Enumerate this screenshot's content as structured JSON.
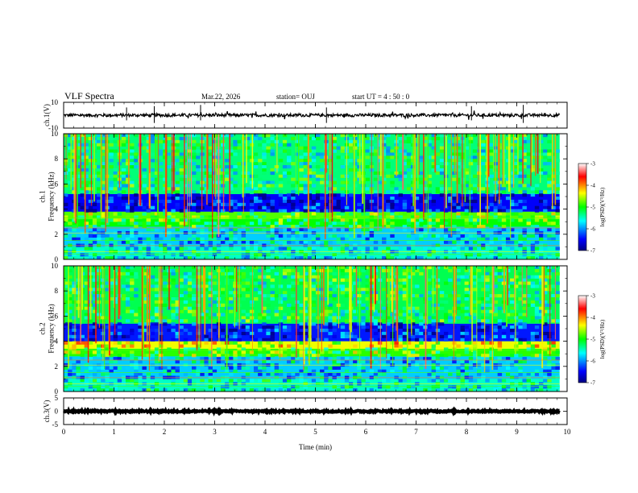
{
  "header": {
    "title": "VLF Spectra",
    "date": "Mar.22, 2026",
    "station": "station= OUJ",
    "start_ut": "start  UT  =   4 : 50 : 0"
  },
  "chart_data": [
    {
      "type": "line",
      "name": "ch1-waveform",
      "ylabel": "ch.1(V)",
      "ylim": [
        -10,
        10
      ],
      "yticks": [
        "10",
        "-10"
      ],
      "xlim": [
        0,
        9.85
      ],
      "approx_level": 0,
      "approx_amplitude": 1.2,
      "series": [
        {
          "color": "#000000"
        }
      ]
    },
    {
      "type": "heatmap",
      "name": "ch1-spectrogram",
      "ylabel": "ch.1\nFrequency (kHz)",
      "ylim": [
        0,
        10
      ],
      "yticks": [
        "0",
        "2",
        "4",
        "6",
        "8",
        "10"
      ],
      "xlim": [
        0,
        9.85
      ],
      "bands_khz": [
        {
          "from": 0,
          "to": 1,
          "log_psd": -5.5
        },
        {
          "from": 1,
          "to": 2.6,
          "log_psd": -5.8
        },
        {
          "from": 2.6,
          "to": 3.2,
          "log_psd": -5.0
        },
        {
          "from": 3.2,
          "to": 3.8,
          "log_psd": -4.8
        },
        {
          "from": 3.8,
          "to": 5.2,
          "log_psd": -6.5
        },
        {
          "from": 5.2,
          "to": 10,
          "log_psd": -5.3
        }
      ],
      "colorbar": {
        "label": "log(PSD)(V²/Hz)",
        "range": [
          -7,
          -3
        ],
        "ticks": [
          "-3",
          "-4",
          "-5",
          "-6",
          "-7"
        ]
      }
    },
    {
      "type": "heatmap",
      "name": "ch2-spectrogram",
      "ylabel": "ch.2\nFrequency (kHz)",
      "ylim": [
        0,
        10
      ],
      "yticks": [
        "0",
        "2",
        "4",
        "6",
        "8",
        "10"
      ],
      "xlim": [
        0,
        9.85
      ],
      "bands_khz": [
        {
          "from": 0,
          "to": 1,
          "log_psd": -5.5
        },
        {
          "from": 1,
          "to": 2.8,
          "log_psd": -5.8
        },
        {
          "from": 2.8,
          "to": 3.4,
          "log_psd": -4.9
        },
        {
          "from": 3.4,
          "to": 4.0,
          "log_psd": -4.4
        },
        {
          "from": 4.0,
          "to": 5.4,
          "log_psd": -6.4
        },
        {
          "from": 5.4,
          "to": 10,
          "log_psd": -5.2
        }
      ],
      "colorbar": {
        "label": "log(PSD)(V²/Hz)",
        "range": [
          -7,
          -3
        ],
        "ticks": [
          "-3",
          "-4",
          "-5",
          "-6",
          "-7"
        ]
      }
    },
    {
      "type": "line",
      "name": "ch3-waveform",
      "ylabel": "ch.3(V)",
      "ylim": [
        -5,
        5
      ],
      "yticks": [
        "5",
        "0",
        "-5"
      ],
      "xlim": [
        0,
        9.85
      ],
      "approx_level": 0,
      "approx_amplitude": 0.3,
      "series": [
        {
          "color": "#000000"
        }
      ]
    }
  ],
  "x_axis": {
    "label": "Time  (min)",
    "range": [
      0,
      10
    ],
    "ticks": [
      "0",
      "1",
      "2",
      "3",
      "4",
      "5",
      "6",
      "7",
      "8",
      "9",
      "10"
    ]
  }
}
